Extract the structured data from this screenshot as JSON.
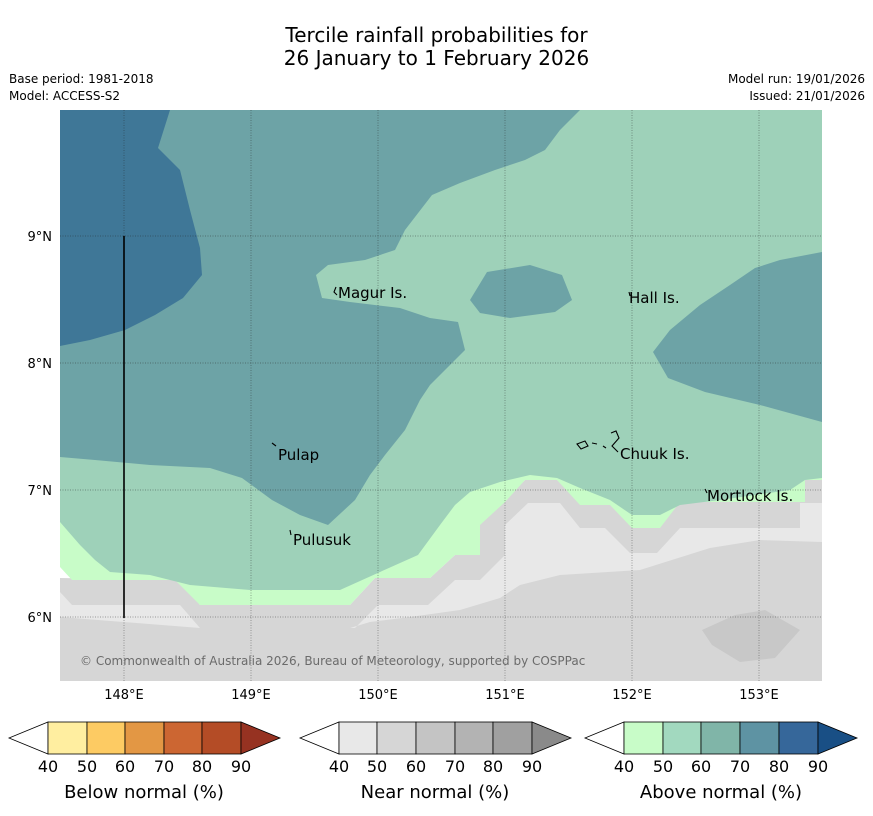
{
  "title": {
    "line1": "Tercile rainfall probabilities for",
    "line2": "26 January to 1 February 2026"
  },
  "meta": {
    "base_period": "Base period: 1981-2018",
    "model": "Model: ACCESS-S2",
    "model_run": "Model run: 19/01/2026",
    "issued": "Issued: 21/01/2026"
  },
  "map": {
    "lat_ticks": [
      "9°N",
      "8°N",
      "7°N",
      "6°N"
    ],
    "lon_ticks": [
      "148°E",
      "149°E",
      "150°E",
      "151°E",
      "152°E",
      "153°E"
    ],
    "places": [
      "Magur Is.",
      "Hall Is.",
      "Pulap",
      "Chuuk Is.",
      "Mortlock Is.",
      "Pulusuk"
    ],
    "copyright": "© Commonwealth of Australia 2026, Bureau of Meteorology, supported by COSPPac"
  },
  "colorbars": [
    {
      "title": "Below normal (%)",
      "ticks": [
        "40",
        "50",
        "60",
        "70",
        "80",
        "90"
      ],
      "colors": [
        "#ffffff",
        "#ffeea0",
        "#fdcb63",
        "#e39744",
        "#cc6632",
        "#b44c26",
        "#963221"
      ]
    },
    {
      "title": "Near normal (%)",
      "ticks": [
        "40",
        "50",
        "60",
        "70",
        "80",
        "90"
      ],
      "colors": [
        "#ffffff",
        "#e8e8e8",
        "#d6d6d6",
        "#c4c4c4",
        "#b3b3b3",
        "#a0a0a0",
        "#8a8a8a"
      ]
    },
    {
      "title": "Above normal (%)",
      "ticks": [
        "40",
        "50",
        "60",
        "70",
        "80",
        "90"
      ],
      "colors": [
        "#ffffff",
        "#c8fcc8",
        "#a2d9bf",
        "#80b5a8",
        "#5e93a3",
        "#36679a",
        "#194f85"
      ]
    }
  ]
}
